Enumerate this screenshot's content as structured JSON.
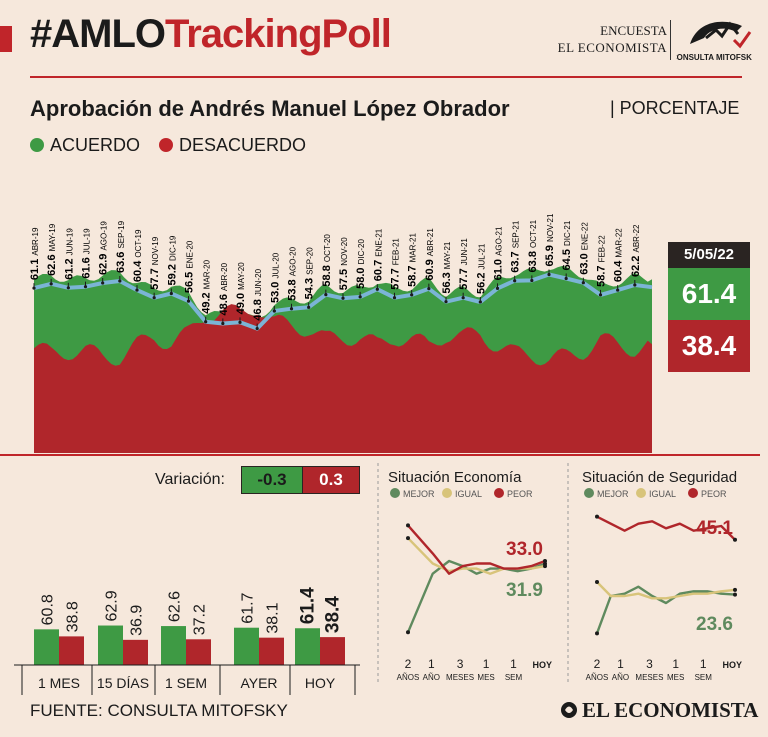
{
  "header": {
    "hashtag_black": "#AMLO",
    "hashtag_red": "TrackingPoll",
    "brand_line1": "ENCUESTA",
    "brand_line2": "EL ECONOMISTA",
    "mitofsky_label": "CONSULTA MITOFSKY"
  },
  "chart_title": "Aprobación de Andrés Manuel López Obrador",
  "chart_unit": "| PORCENTAJE",
  "legend": {
    "agree": "ACUERDO",
    "disagree": "DESACUERDO"
  },
  "colors": {
    "green": "#3e9a44",
    "red": "#b0262b",
    "blue": "#7bb4d6",
    "accent_red": "#c0252a",
    "tan": "#d8c47a",
    "olive": "#5f8a5e",
    "background": "#f6e8dc"
  },
  "latest": {
    "date": "5/05/22",
    "agree": "61.4",
    "disagree": "38.4"
  },
  "chart_data": [
    {
      "type": "area",
      "title": "Aprobación de Andrés Manuel López Obrador",
      "ylabel": "PORCENTAJE",
      "ylim": [
        0,
        100
      ],
      "monthly_labels": [
        {
          "value": "61.1",
          "date": "ABR-19"
        },
        {
          "value": "62.6",
          "date": "MAY-19"
        },
        {
          "value": "61.2",
          "date": "JUN-19"
        },
        {
          "value": "61.6",
          "date": "JUL-19"
        },
        {
          "value": "62.9",
          "date": "AGO-19"
        },
        {
          "value": "63.6",
          "date": "SEP-19"
        },
        {
          "value": "60.4",
          "date": "OCT-19"
        },
        {
          "value": "57.7",
          "date": "NOV-19"
        },
        {
          "value": "59.2",
          "date": "DIC-19"
        },
        {
          "value": "56.5",
          "date": "ENE-20"
        },
        {
          "value": "49.2",
          "date": "MAR-20"
        },
        {
          "value": "48.6",
          "date": "ABR-20"
        },
        {
          "value": "49.0",
          "date": "MAY-20"
        },
        {
          "value": "46.8",
          "date": "JUN-20"
        },
        {
          "value": "53.0",
          "date": "JUL-20"
        },
        {
          "value": "53.8",
          "date": "AGO-20"
        },
        {
          "value": "54.3",
          "date": "SEP-20"
        },
        {
          "value": "58.8",
          "date": "OCT-20"
        },
        {
          "value": "57.5",
          "date": "NOV-20"
        },
        {
          "value": "58.0",
          "date": "DIC-20"
        },
        {
          "value": "60.7",
          "date": "ENE-21"
        },
        {
          "value": "57.7",
          "date": "FEB-21"
        },
        {
          "value": "58.7",
          "date": "MAR-21"
        },
        {
          "value": "60.9",
          "date": "ABR-21"
        },
        {
          "value": "56.3",
          "date": "MAY-21"
        },
        {
          "value": "57.7",
          "date": "JUN-21"
        },
        {
          "value": "56.2",
          "date": "JUL-21"
        },
        {
          "value": "61.0",
          "date": "AGO-21"
        },
        {
          "value": "63.7",
          "date": "SEP-21"
        },
        {
          "value": "63.8",
          "date": "OCT-21"
        },
        {
          "value": "65.9",
          "date": "NOV-21"
        },
        {
          "value": "64.5",
          "date": "DIC-21"
        },
        {
          "value": "63.0",
          "date": "ENE-22"
        },
        {
          "value": "58.7",
          "date": "FEB-22"
        },
        {
          "value": "60.4",
          "date": "MAR-22"
        },
        {
          "value": "62.2",
          "date": "ABR-22"
        }
      ],
      "series": [
        {
          "name": "ACUERDO",
          "values": [
            61.1,
            62.6,
            61.2,
            61.6,
            62.9,
            63.6,
            60.4,
            57.7,
            59.2,
            56.5,
            49.2,
            48.6,
            49.0,
            46.8,
            53.0,
            53.8,
            54.3,
            58.8,
            57.5,
            58.0,
            60.7,
            57.7,
            58.7,
            60.9,
            56.3,
            57.7,
            56.2,
            61.0,
            63.7,
            63.8,
            65.9,
            64.5,
            63.0,
            58.7,
            60.4,
            62.2,
            61.4
          ]
        },
        {
          "name": "DESACUERDO",
          "values": [
            37,
            35,
            36,
            36,
            34,
            34,
            38,
            41,
            39,
            42,
            49,
            50,
            49,
            52,
            46,
            45,
            44,
            40,
            41,
            41,
            38,
            41,
            40,
            38,
            42,
            41,
            42,
            38,
            35,
            35,
            33,
            34,
            36,
            40,
            38,
            37,
            38.4
          ]
        }
      ]
    },
    {
      "type": "bar",
      "categories": [
        "1 MES",
        "15 DÍAS",
        "1 SEM",
        "AYER",
        "HOY"
      ],
      "series": [
        {
          "name": "ACUERDO",
          "values": [
            60.8,
            62.9,
            62.6,
            61.7,
            61.4
          ]
        },
        {
          "name": "DESACUERDO",
          "values": [
            38.8,
            36.9,
            37.2,
            38.1,
            38.4
          ]
        }
      ],
      "labels": {
        "agree": [
          "60.8",
          "62.9",
          "62.6",
          "61.7",
          "61.4"
        ],
        "disagree": [
          "38.8",
          "36.9",
          "37.2",
          "38.1",
          "38.4"
        ]
      },
      "variation": {
        "label": "Variación:",
        "agree": "-0.3",
        "disagree": "0.3"
      }
    },
    {
      "type": "line",
      "title": "Situación Economía",
      "x": [
        "2 AÑOS",
        "1 AÑO",
        "3 MESES",
        "1 MES",
        "1 SEM",
        "HOY"
      ],
      "x_top": [
        "2",
        "1",
        "3",
        "1",
        "1",
        "HOY"
      ],
      "x_bottom": [
        "AÑOS",
        "AÑO",
        "MESES",
        "MES",
        "SEM",
        ""
      ],
      "series": [
        {
          "name": "MEJOR",
          "x": [
            0,
            0.9,
            1.5,
            2,
            2.5,
            3,
            3.5,
            4,
            4.5,
            5
          ],
          "values": [
            5,
            28,
            33,
            31,
            28,
            30,
            30,
            29,
            30,
            31.9
          ]
        },
        {
          "name": "IGUAL",
          "x": [
            0,
            0.9,
            1.5,
            2,
            2.5,
            3,
            3.5,
            4,
            4.5,
            5
          ],
          "values": [
            42,
            32,
            29,
            30,
            30,
            28,
            30,
            30,
            30,
            31
          ]
        },
        {
          "name": "PEOR",
          "x": [
            0,
            0.9,
            1.5,
            2,
            2.5,
            3,
            3.5,
            4,
            4.5,
            5
          ],
          "values": [
            47,
            36,
            28,
            31,
            32,
            32,
            30,
            30,
            31,
            33.0
          ]
        }
      ],
      "labels": {
        "peor": "33.0",
        "mejor": "31.9"
      },
      "legend": [
        "MEJOR",
        "IGUAL",
        "PEOR"
      ]
    },
    {
      "type": "line",
      "title": "Situación de Seguridad",
      "x": [
        "2 AÑOS",
        "1 AÑO",
        "3 MESES",
        "1 MES",
        "1 SEM",
        "HOY"
      ],
      "x_top": [
        "2",
        "1",
        "3",
        "1",
        "1",
        "HOY"
      ],
      "x_bottom": [
        "AÑOS",
        "AÑO",
        "MESES",
        "MES",
        "SEM",
        ""
      ],
      "series": [
        {
          "name": "MEJOR",
          "x": [
            0,
            0.5,
            1,
            1.5,
            2,
            2.5,
            3,
            3.5,
            4,
            4.5,
            5
          ],
          "values": [
            5,
            21,
            22,
            25,
            21,
            18,
            22,
            23,
            23,
            22,
            21.6
          ]
        },
        {
          "name": "IGUAL",
          "x": [
            0,
            0.5,
            1,
            1.5,
            2,
            2.5,
            3,
            3.5,
            4,
            4.5,
            5
          ],
          "values": [
            27,
            21,
            21,
            22,
            20,
            20,
            21,
            22,
            22,
            23,
            23.6
          ]
        },
        {
          "name": "PEOR",
          "x": [
            0,
            0.5,
            1,
            1.5,
            2,
            2.5,
            3,
            3.5,
            4,
            4.5,
            5
          ],
          "values": [
            55,
            52,
            49,
            52,
            53,
            50,
            52,
            49,
            50,
            51,
            45.1
          ]
        }
      ],
      "labels": {
        "peor": "45.1",
        "igual": "23.6"
      },
      "legend": [
        "MEJOR",
        "IGUAL",
        "PEOR"
      ]
    }
  ],
  "footer": {
    "source": "FUENTE: CONSULTA MITOFSKY",
    "logo": "EL ECONOMISTA"
  }
}
